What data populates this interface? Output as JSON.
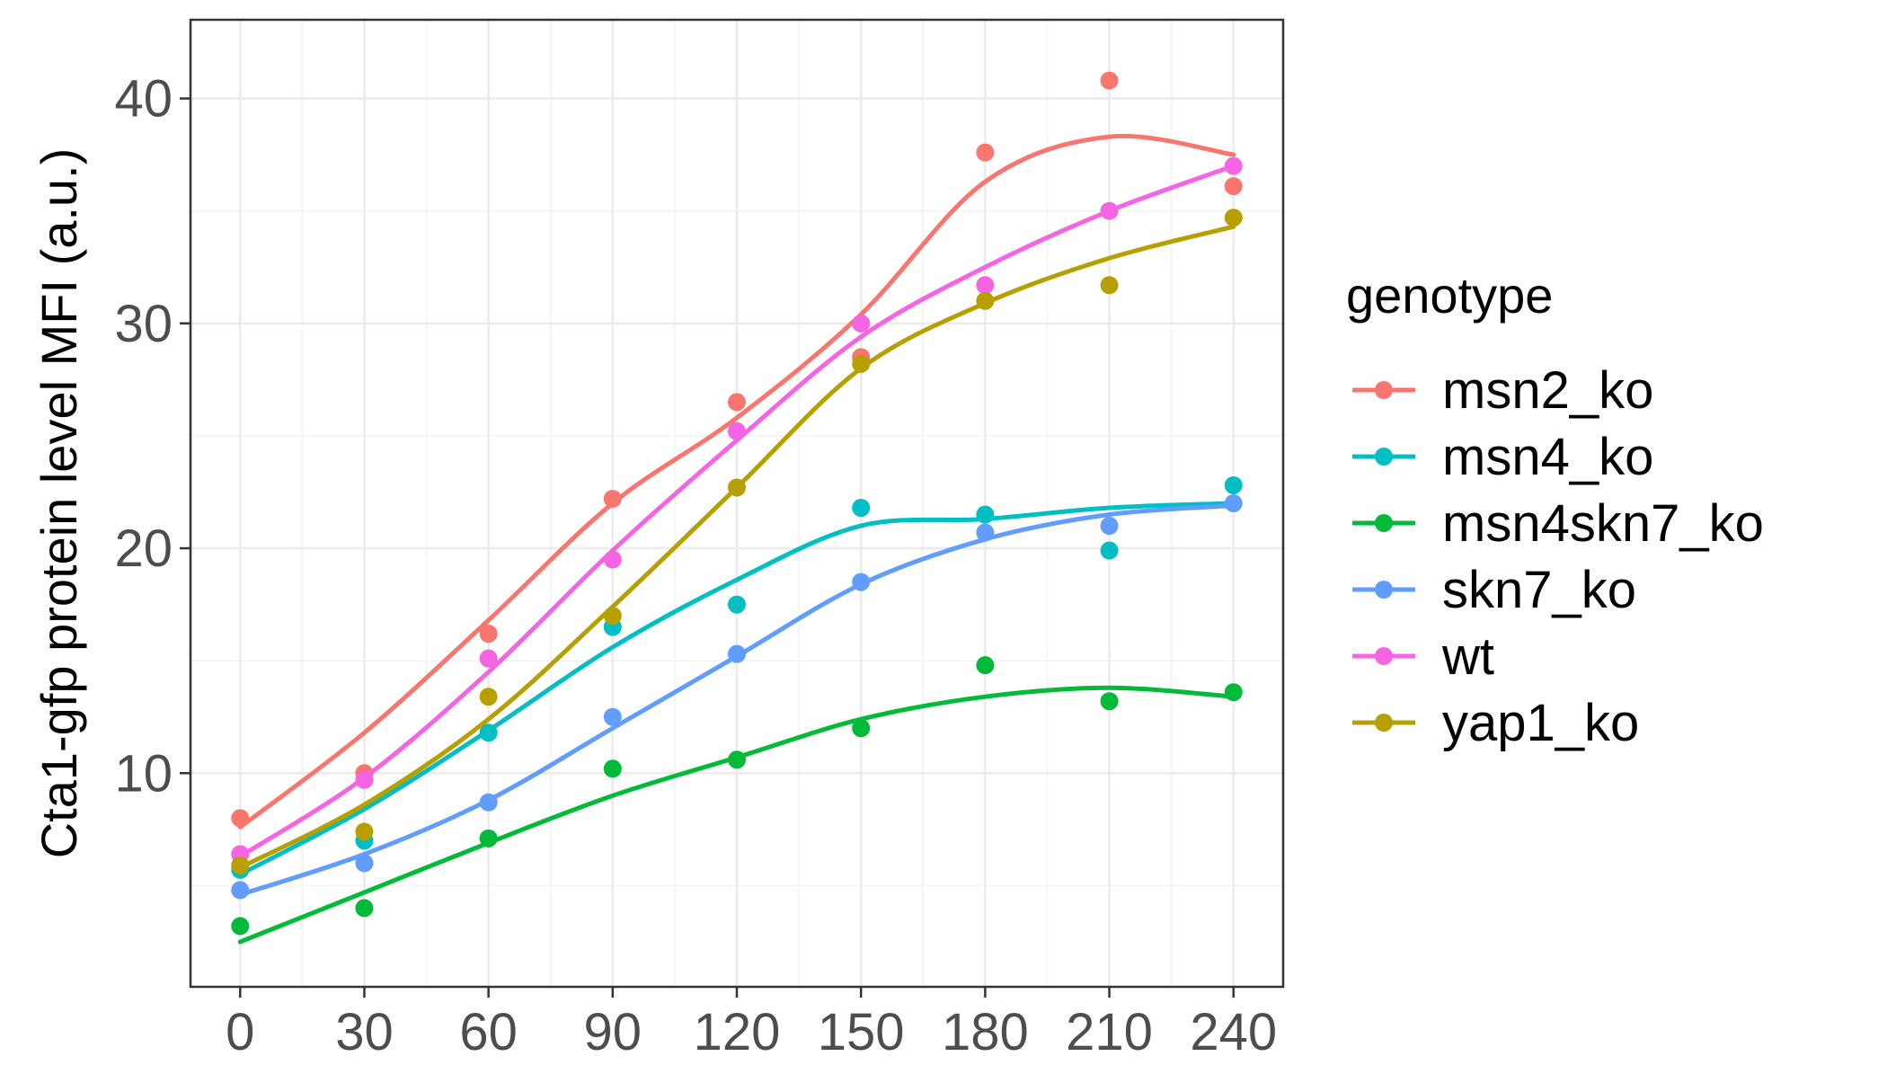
{
  "chart_data": {
    "type": "line",
    "title": "",
    "xlabel": "",
    "ylabel": "Cta1-gfp protein level MFI (a.u.)",
    "x": [
      0,
      30,
      60,
      90,
      120,
      150,
      180,
      210,
      240
    ],
    "xlim": [
      -12,
      252
    ],
    "ylim": [
      0.5,
      43.5
    ],
    "x_ticks": [
      0,
      30,
      60,
      90,
      120,
      150,
      180,
      210,
      240
    ],
    "y_ticks": [
      10,
      20,
      30,
      40
    ],
    "grid": true,
    "legend": {
      "title": "genotype",
      "position": "right"
    },
    "series": [
      {
        "name": "msn2_ko",
        "color": "#F8766D",
        "points": [
          8.0,
          10.0,
          16.2,
          22.2,
          26.5,
          28.5,
          37.6,
          40.8,
          36.1
        ],
        "smooth": [
          7.6,
          11.8,
          16.8,
          22.0,
          25.8,
          30.4,
          36.3,
          38.3,
          37.5
        ]
      },
      {
        "name": "msn4_ko",
        "color": "#00BFC4",
        "points": [
          5.7,
          7.0,
          11.8,
          16.5,
          17.5,
          21.8,
          21.5,
          19.9,
          22.8
        ],
        "smooth": [
          5.5,
          8.4,
          11.9,
          15.6,
          18.6,
          21.0,
          21.3,
          21.8,
          22.0
        ]
      },
      {
        "name": "msn4skn7_ko",
        "color": "#00BA38",
        "points": [
          3.2,
          4.0,
          7.1,
          10.2,
          10.6,
          12.0,
          14.8,
          13.2,
          13.6
        ],
        "smooth": [
          2.5,
          4.7,
          6.9,
          9.0,
          10.7,
          12.4,
          13.4,
          13.8,
          13.4
        ]
      },
      {
        "name": "skn7_ko",
        "color": "#619CFF",
        "points": [
          4.8,
          6.0,
          8.7,
          12.5,
          15.3,
          18.5,
          20.7,
          21.0,
          22.0
        ],
        "smooth": [
          4.6,
          6.4,
          8.8,
          12.0,
          15.2,
          18.4,
          20.4,
          21.5,
          21.9
        ]
      },
      {
        "name": "wt",
        "color": "#F564E3",
        "points": [
          6.4,
          9.7,
          15.1,
          19.5,
          25.2,
          30.0,
          31.7,
          35.0,
          37.0
        ],
        "smooth": [
          6.3,
          9.8,
          14.5,
          19.9,
          24.8,
          29.4,
          32.5,
          35.0,
          37.0
        ]
      },
      {
        "name": "yap1_ko",
        "color": "#B79F00",
        "points": [
          5.9,
          7.4,
          13.4,
          17.0,
          22.7,
          28.2,
          31.0,
          31.7,
          34.7
        ],
        "smooth": [
          5.8,
          8.6,
          12.4,
          17.4,
          22.7,
          28.0,
          30.9,
          32.9,
          34.3
        ]
      }
    ]
  }
}
